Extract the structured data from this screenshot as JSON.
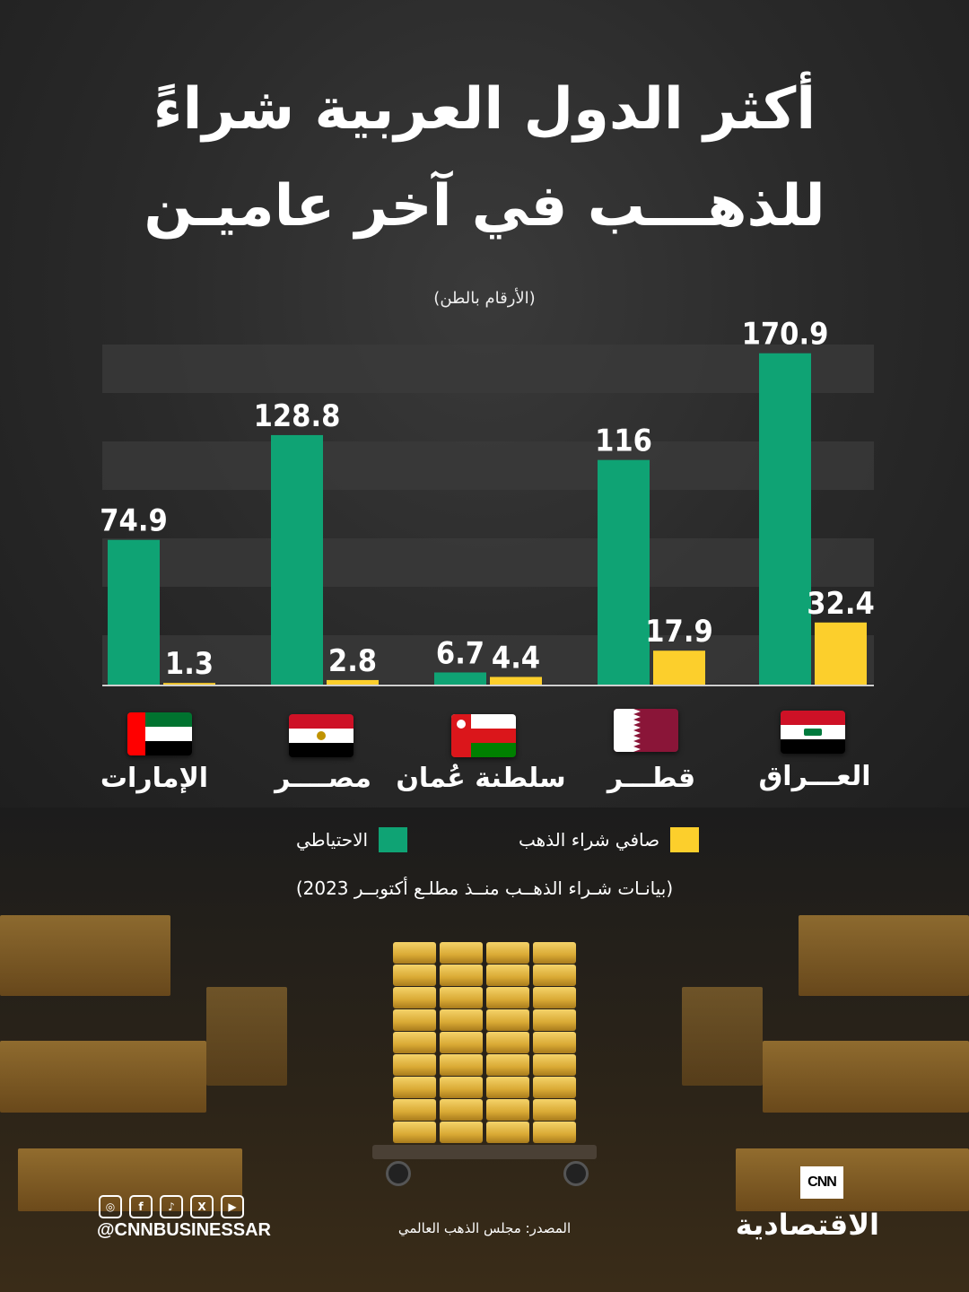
{
  "title": {
    "line1": "أكثر الدول العربية شراءً",
    "line2": "للذهـــب في آخر عاميـن"
  },
  "unit_note": "(الأرقام بالطن)",
  "legend": {
    "reserves": "الاحتياطي",
    "net_purchase": "صافي شراء الذهب"
  },
  "period_note": "(بيانـات شـراء الذهــب منــذ مطلـع أكتوبــر 2023)",
  "colors": {
    "reserves": "#0fa374",
    "net_purchase": "#fccf2c",
    "band": "#3b3b3b"
  },
  "countries": [
    {
      "name": "الإمارات",
      "flag": "uae-flag-icon"
    },
    {
      "name": "مصــــر",
      "flag": "egypt-flag-icon"
    },
    {
      "name": "سلطنة عُمان",
      "flag": "oman-flag-icon"
    },
    {
      "name": "قطـــر",
      "flag": "qatar-flag-icon"
    },
    {
      "name": "العـــراق",
      "flag": "iraq-flag-icon"
    }
  ],
  "chart_data": {
    "type": "bar",
    "categories": [
      "الإمارات",
      "مصر",
      "سلطنة عُمان",
      "قطر",
      "العراق"
    ],
    "series": [
      {
        "name": "الاحتياطي",
        "values": [
          74.9,
          128.8,
          6.7,
          116,
          170.9
        ]
      },
      {
        "name": "صافي شراء الذهب",
        "values": [
          1.3,
          2.8,
          4.4,
          17.9,
          32.4
        ]
      }
    ],
    "value_labels": [
      [
        "74.9",
        "128.8",
        "6.7",
        "116",
        "170.9"
      ],
      [
        "1.3",
        "2.8",
        "4.4",
        "17.9",
        "32.4"
      ]
    ],
    "ylim": [
      0,
      180
    ],
    "grid": "horizontal bands",
    "legend_position": "bottom"
  },
  "footer": {
    "social_icons": [
      "instagram-icon",
      "facebook-icon",
      "tiktok-icon",
      "x-icon",
      "youtube-icon"
    ],
    "handle": "@CNNBUSINESSAR",
    "source": "المصدر: مجلس الذهب العالمي",
    "logo_brand": "CNN",
    "logo_name": "الاقتصادية"
  }
}
